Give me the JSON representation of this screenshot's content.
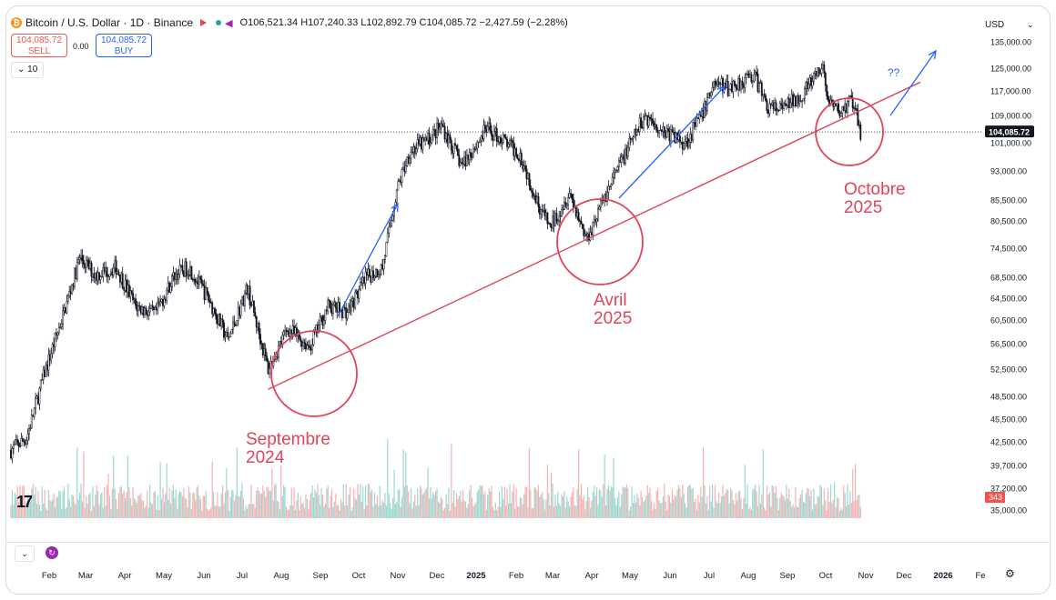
{
  "header": {
    "symbol": "Bitcoin / U.S. Dollar · 1D · Binance",
    "ohlc": "O106,521.34 H107,240.33 L102,892.79 C104,085.72 −2,427.59 (−2.28%)",
    "sell_price": "104,085.72",
    "sell_label": "SELL",
    "buy_price": "104,085.72",
    "buy_label": "BUY",
    "spread": "0.00",
    "indicator_count": "10"
  },
  "price_scale": {
    "currency": "USD",
    "ticks": [
      "135,000.00",
      "125,000.00",
      "117,000.00",
      "109,000.00",
      "101,000.00",
      "93,000.00",
      "85,500.00",
      "80,500.00",
      "74,500.00",
      "68,500.00",
      "64,500.00",
      "60,500.00",
      "56,500.00",
      "52,500.00",
      "48,500.00",
      "45,500.00",
      "42,500.00",
      "39,700.00",
      "37,200.00",
      "35,000.00"
    ],
    "last_price_label": "104,085.72",
    "volume_label": "343"
  },
  "time_axis": [
    "Feb",
    "Mar",
    "Apr",
    "May",
    "Jun",
    "Jul",
    "Aug",
    "Sep",
    "Oct",
    "Nov",
    "Dec",
    "2025",
    "Feb",
    "Mar",
    "Apr",
    "May",
    "Jun",
    "Jul",
    "Aug",
    "Sep",
    "Oct",
    "Nov",
    "Dec",
    "2026",
    "Fe"
  ],
  "annotations": {
    "sept": [
      "Septembre",
      "2024"
    ],
    "avril": [
      "Avril",
      "2025"
    ],
    "octobre": [
      "Octobre",
      "2025"
    ],
    "question": "??"
  },
  "colors": {
    "up": "#131722",
    "trendline": "#e0445a",
    "arrows": "#2962ff",
    "volume_up": "#26a69a",
    "volume_down": "#ef5350"
  },
  "chart_data": {
    "type": "line",
    "title": "Bitcoin / U.S. Dollar · 1D · Binance",
    "xlabel": "",
    "ylabel": "",
    "ylim": [
      35000,
      135000
    ],
    "scale": "log",
    "x": [
      "2024-01-20",
      "2024-02-01",
      "2024-02-15",
      "2024-03-01",
      "2024-03-13",
      "2024-03-25",
      "2024-04-10",
      "2024-04-25",
      "2024-05-10",
      "2024-05-25",
      "2024-06-05",
      "2024-06-20",
      "2024-07-05",
      "2024-07-20",
      "2024-08-05",
      "2024-08-20",
      "2024-09-06",
      "2024-09-20",
      "2024-10-05",
      "2024-10-20",
      "2024-11-01",
      "2024-11-12",
      "2024-11-22",
      "2024-12-05",
      "2024-12-17",
      "2025-01-01",
      "2025-01-20",
      "2025-02-01",
      "2025-02-15",
      "2025-03-01",
      "2025-03-10",
      "2025-03-25",
      "2025-04-07",
      "2025-04-20",
      "2025-05-05",
      "2025-05-22",
      "2025-06-05",
      "2025-06-22",
      "2025-07-05",
      "2025-07-14",
      "2025-07-25",
      "2025-08-14",
      "2025-08-25",
      "2025-09-05",
      "2025-09-20",
      "2025-10-06",
      "2025-10-11",
      "2025-10-20",
      "2025-10-28",
      "2025-11-04"
    ],
    "series": [
      {
        "values": [
          41500,
          43000,
          52000,
          62000,
          72500,
          69000,
          70500,
          63000,
          61500,
          69000,
          70500,
          64500,
          57000,
          66500,
          52500,
          59000,
          56000,
          63000,
          62000,
          68500,
          70500,
          88000,
          98500,
          101500,
          106000,
          94500,
          105000,
          102000,
          97500,
          84500,
          79000,
          87500,
          76500,
          85500,
          96500,
          109000,
          104500,
          101000,
          109000,
          120000,
          118000,
          122500,
          111500,
          111000,
          116000,
          125000,
          112000,
          110000,
          114000,
          104085.72
        ]
      }
    ],
    "trendline": {
      "start": [
        "2024-08-05",
        49500
      ],
      "end": [
        "2025-12-20",
        120000
      ]
    },
    "highlighted_regions": [
      "Septembre 2024",
      "Avril 2025",
      "Octobre 2025"
    ]
  }
}
